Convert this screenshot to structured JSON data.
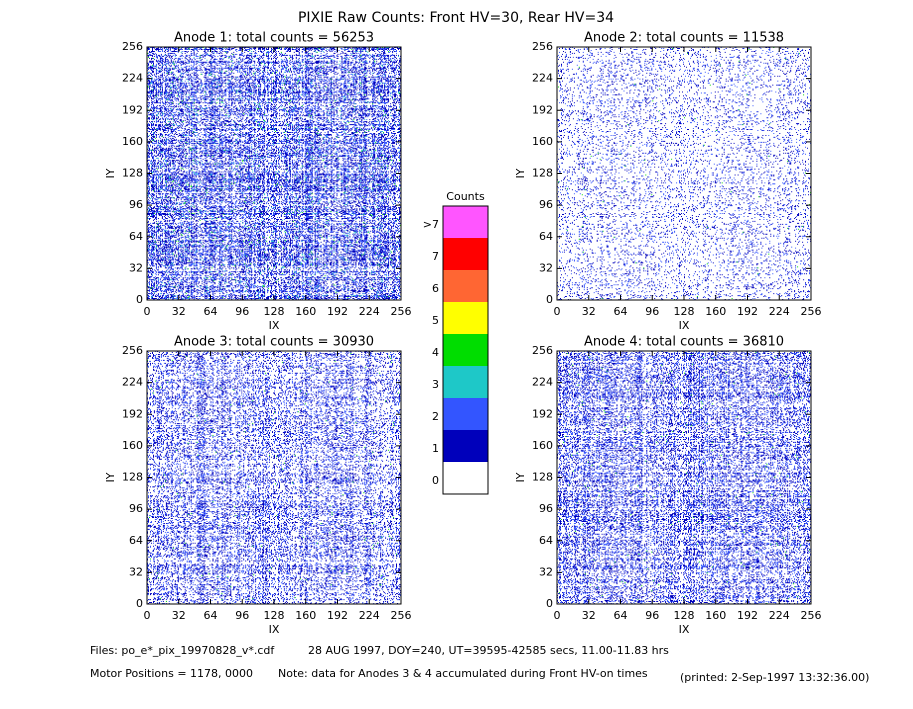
{
  "title": "PIXIE Raw Counts:  Front HV=30, Rear HV=34",
  "chart_data": [
    {
      "type": "heatmap",
      "title": "Anode 1: total counts = 56253",
      "xlabel": "IX",
      "ylabel": "IY",
      "xlim": [
        0,
        256
      ],
      "ylim": [
        0,
        256
      ],
      "xticks": [
        0,
        32,
        64,
        96,
        128,
        160,
        192,
        224,
        256
      ],
      "yticks": [
        0,
        32,
        64,
        96,
        128,
        160,
        192,
        224,
        256
      ]
    },
    {
      "type": "heatmap",
      "title": "Anode 2: total counts = 11538",
      "xlabel": "IX",
      "ylabel": "IY",
      "xlim": [
        0,
        256
      ],
      "ylim": [
        0,
        256
      ],
      "xticks": [
        0,
        32,
        64,
        96,
        128,
        160,
        192,
        224,
        256
      ],
      "yticks": [
        0,
        32,
        64,
        96,
        128,
        160,
        192,
        224,
        256
      ]
    },
    {
      "type": "heatmap",
      "title": "Anode 3: total counts = 30930",
      "xlabel": "IX",
      "ylabel": "IY",
      "xlim": [
        0,
        256
      ],
      "ylim": [
        0,
        256
      ],
      "xticks": [
        0,
        32,
        64,
        96,
        128,
        160,
        192,
        224,
        256
      ],
      "yticks": [
        0,
        32,
        64,
        96,
        128,
        160,
        192,
        224,
        256
      ]
    },
    {
      "type": "heatmap",
      "title": "Anode 4: total counts = 36810",
      "xlabel": "IX",
      "ylabel": "IY",
      "xlim": [
        0,
        256
      ],
      "ylim": [
        0,
        256
      ],
      "xticks": [
        0,
        32,
        64,
        96,
        128,
        160,
        192,
        224,
        256
      ],
      "yticks": [
        0,
        32,
        64,
        96,
        128,
        160,
        192,
        224,
        256
      ]
    }
  ],
  "colorbar": {
    "title": "Counts",
    "levels": [
      {
        "label": "0",
        "color": "#ffffff"
      },
      {
        "label": "1",
        "color": "#0000bb"
      },
      {
        "label": "2",
        "color": "#3355ff"
      },
      {
        "label": "3",
        "color": "#1ec8c8"
      },
      {
        "label": "4",
        "color": "#00dd00"
      },
      {
        "label": "5",
        "color": "#ffff00"
      },
      {
        "label": "6",
        "color": "#ff6633"
      },
      {
        "label": "7",
        "color": "#ff0000"
      },
      {
        "label": ">7",
        "color": "#ff55ff"
      }
    ]
  },
  "footer": {
    "files": "Files: po_e*_pix_19970828_v*.cdf",
    "time": "28 AUG 1997, DOY=240, UT=39595-42585 secs, 11.00-11.83 hrs",
    "motor": "Motor Positions = 1178, 0000",
    "note": "Note: data for Anodes 3 & 4 accumulated during Front HV-on times",
    "printed": "(printed:  2-Sep-1997 13:32:36.00)"
  }
}
